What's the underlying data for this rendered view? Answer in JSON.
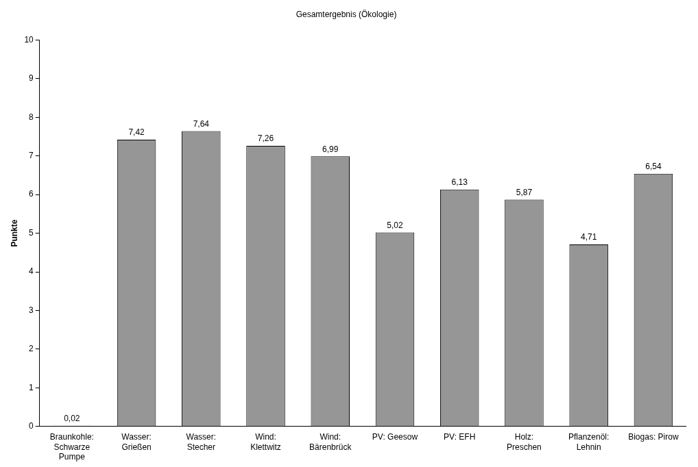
{
  "chart_data": {
    "type": "bar",
    "title": "Gesamtergebnis (Ökologie)",
    "ylabel": "Punkte",
    "categories": [
      "Braunkohle: Schwarze Pumpe",
      "Wasser: Grießen",
      "Wasser: Stecher",
      "Wind: Klettwitz",
      "Wind: Bärenbrück",
      "PV: Geesow",
      "PV: EFH",
      "Holz: Preschen",
      "Pflanzenöl: Lehnin",
      "Biogas: Pirow"
    ],
    "values": [
      0.02,
      7.42,
      7.64,
      7.26,
      6.99,
      5.02,
      6.13,
      5.87,
      4.71,
      6.54
    ],
    "value_labels": [
      "0,02",
      "7,42",
      "7,64",
      "7,26",
      "6,99",
      "5,02",
      "6,13",
      "5,87",
      "4,71",
      "6,54"
    ],
    "color": "#969696",
    "ylim": [
      0,
      10
    ],
    "yticks": [
      0,
      1,
      2,
      3,
      4,
      5,
      6,
      7,
      8,
      9,
      10
    ],
    "grid": false,
    "legend": false
  }
}
